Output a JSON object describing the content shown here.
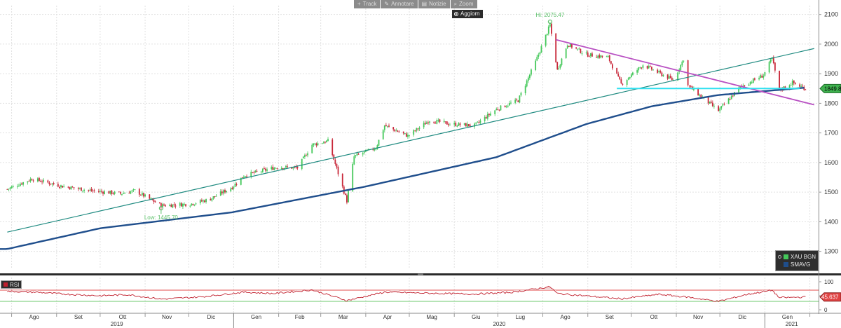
{
  "toolbar": {
    "buttons": [
      {
        "name": "track-button",
        "icon": "plus-icon",
        "glyph": "+",
        "label": "Track"
      },
      {
        "name": "annotate-button",
        "icon": "pencil-icon",
        "glyph": "✎",
        "label": "Annotare"
      },
      {
        "name": "news-button",
        "icon": "document-icon",
        "glyph": "▤",
        "label": "Notizie"
      },
      {
        "name": "zoom-button",
        "icon": "magnifier-icon",
        "glyph": "⌕",
        "label": "Zoom"
      }
    ],
    "update_label": "Aggiorn"
  },
  "colors": {
    "background": "#ffffff",
    "up_candle": "#44c85a",
    "down_candle": "#c8283a",
    "sma": "#1f4e8c",
    "uptrend_line": "#1e8a80",
    "downtrend_line": "#b84fc2",
    "support_line": "#2fe0f0",
    "rsi_line": "#c0202e",
    "rsi_band": "#f3d4d4",
    "annotation": "#5cc06a"
  },
  "legend": {
    "items": [
      {
        "label": "XAU BGN",
        "color": "#44c85a"
      },
      {
        "label": "SMAVG",
        "color": "#1f4e8c"
      }
    ]
  },
  "rsi_legend": {
    "label": "RSI"
  },
  "chart_data": [
    {
      "type": "candlestick",
      "series": [
        {
          "name": "XAU BGN",
          "last": 1849.8,
          "last_label": "1849.8"
        },
        {
          "name": "SMAVG"
        }
      ],
      "ylim": [
        1240,
        2130
      ],
      "yticks": [
        1300,
        1400,
        1500,
        1600,
        1700,
        1800,
        1900,
        2000,
        2100
      ],
      "x_month_labels": [
        "Ago",
        "Set",
        "Ott",
        "Nov",
        "Dic",
        "Gen",
        "Feb",
        "Mar",
        "Apr",
        "Mag",
        "Giu",
        "Lug",
        "Ago",
        "Set",
        "Ott",
        "Nov",
        "Dic",
        "Gen"
      ],
      "x_year_labels": [
        "2019",
        "2020",
        "2021"
      ],
      "close_anchors": [
        [
          "2019-07-29",
          1510
        ],
        [
          "2019-08-15",
          1545
        ],
        [
          "2019-09-05",
          1520
        ],
        [
          "2019-09-25",
          1505
        ],
        [
          "2019-10-15",
          1495
        ],
        [
          "2019-10-25",
          1505
        ],
        [
          "2019-11-12",
          1455
        ],
        [
          "2019-12-02",
          1460
        ],
        [
          "2019-12-15",
          1475
        ],
        [
          "2019-12-31",
          1517
        ],
        [
          "2020-01-08",
          1556
        ],
        [
          "2020-01-31",
          1585
        ],
        [
          "2020-02-14",
          1582
        ],
        [
          "2020-02-24",
          1660
        ],
        [
          "2020-03-06",
          1673
        ],
        [
          "2020-03-19",
          1470
        ],
        [
          "2020-03-24",
          1620
        ],
        [
          "2020-04-08",
          1650
        ],
        [
          "2020-04-14",
          1725
        ],
        [
          "2020-04-30",
          1690
        ],
        [
          "2020-05-15",
          1743
        ],
        [
          "2020-05-29",
          1730
        ],
        [
          "2020-06-15",
          1725
        ],
        [
          "2020-06-30",
          1780
        ],
        [
          "2020-07-15",
          1810
        ],
        [
          "2020-07-27",
          1940
        ],
        [
          "2020-08-06",
          2065
        ],
        [
          "2020-08-11",
          1912
        ],
        [
          "2020-08-18",
          2000
        ],
        [
          "2020-08-31",
          1965
        ],
        [
          "2020-09-15",
          1955
        ],
        [
          "2020-09-24",
          1865
        ],
        [
          "2020-10-09",
          1930
        ],
        [
          "2020-10-30",
          1878
        ],
        [
          "2020-11-06",
          1950
        ],
        [
          "2020-11-09",
          1860
        ],
        [
          "2020-11-30",
          1775
        ],
        [
          "2020-12-15",
          1855
        ],
        [
          "2020-12-31",
          1895
        ],
        [
          "2021-01-06",
          1952
        ],
        [
          "2021-01-11",
          1845
        ],
        [
          "2021-01-20",
          1870
        ],
        [
          "2021-01-29",
          1850
        ]
      ],
      "sma_anchors": [
        [
          "2019-07-29",
          1308
        ],
        [
          "2019-10-01",
          1378
        ],
        [
          "2019-12-31",
          1432
        ],
        [
          "2020-03-31",
          1518
        ],
        [
          "2020-06-30",
          1618
        ],
        [
          "2020-08-31",
          1730
        ],
        [
          "2020-10-15",
          1790
        ],
        [
          "2020-11-30",
          1828
        ],
        [
          "2021-01-29",
          1853
        ]
      ],
      "trend_lines": [
        {
          "name": "uptrend",
          "from": [
            "2019-07-29",
            1365
          ],
          "to": [
            "2021-02-04",
            1985
          ]
        },
        {
          "name": "downtrend",
          "from": [
            "2020-08-10",
            2015
          ],
          "to": [
            "2021-02-04",
            1795
          ]
        },
        {
          "name": "support",
          "from": [
            "2020-09-21",
            1850
          ],
          "to": [
            "2021-01-25",
            1850
          ]
        }
      ],
      "annotations": [
        {
          "label": "Hi: 2075.47",
          "date": "2020-08-06",
          "value": 2075.47
        },
        {
          "label": "Low: 1445.70",
          "date": "2019-11-12",
          "value": 1445.7
        }
      ]
    },
    {
      "type": "line",
      "title": "RSI",
      "ylim": [
        -5,
        110
      ],
      "yticks": [
        0,
        50,
        100
      ],
      "upper_band": 70,
      "lower_band": 30,
      "series": [
        {
          "name": "RSI",
          "last": 45.637,
          "last_label": "45.637"
        }
      ],
      "anchors": [
        [
          "2019-07-29",
          66
        ],
        [
          "2019-08-20",
          62
        ],
        [
          "2019-09-10",
          55
        ],
        [
          "2019-10-01",
          50
        ],
        [
          "2019-10-20",
          54
        ],
        [
          "2019-11-12",
          38
        ],
        [
          "2019-12-10",
          46
        ],
        [
          "2020-01-08",
          63
        ],
        [
          "2020-01-28",
          58
        ],
        [
          "2020-02-24",
          71
        ],
        [
          "2020-03-19",
          33
        ],
        [
          "2020-04-14",
          63
        ],
        [
          "2020-05-15",
          59
        ],
        [
          "2020-06-15",
          56
        ],
        [
          "2020-07-10",
          62
        ],
        [
          "2020-08-06",
          82
        ],
        [
          "2020-08-11",
          58
        ],
        [
          "2020-09-24",
          39
        ],
        [
          "2020-10-20",
          55
        ],
        [
          "2020-11-09",
          45
        ],
        [
          "2020-11-30",
          30
        ],
        [
          "2020-12-20",
          55
        ],
        [
          "2021-01-06",
          70
        ],
        [
          "2021-01-11",
          43
        ],
        [
          "2021-01-29",
          45.6
        ]
      ]
    }
  ]
}
